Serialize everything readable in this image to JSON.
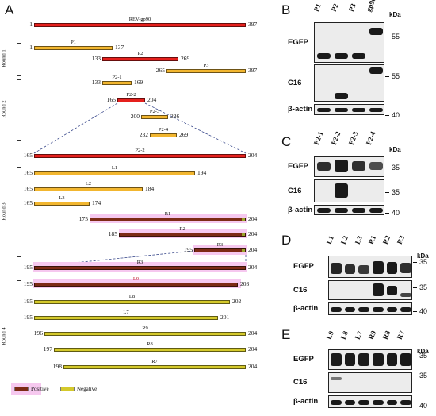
{
  "panel_a": {
    "label": "A",
    "constructs": [
      {
        "id": "rev-gp90",
        "name": "REV-gp90",
        "start": "1",
        "end": "397",
        "color": "red"
      },
      {
        "id": "p1",
        "name": "P1",
        "start": "1",
        "end": "137",
        "color": "orange"
      },
      {
        "id": "p2",
        "name": "P2",
        "start": "133",
        "end": "269",
        "color": "red"
      },
      {
        "id": "p3",
        "name": "P3",
        "start": "265",
        "end": "397",
        "color": "orange"
      },
      {
        "id": "p2-1",
        "name": "P2-1",
        "start": "133",
        "end": "169",
        "color": "orange"
      },
      {
        "id": "p2-2",
        "name": "P2-2",
        "start": "165",
        "end": "204",
        "color": "red"
      },
      {
        "id": "p2-3",
        "name": "P2-3",
        "start": "200",
        "end": "236",
        "color": "orange"
      },
      {
        "id": "p2-4",
        "name": "P2-4",
        "start": "232",
        "end": "269",
        "color": "orange"
      },
      {
        "id": "p2-2-exp",
        "name": "P2-2",
        "start": "165",
        "end": "204",
        "color": "red"
      },
      {
        "id": "l1",
        "name": "L1",
        "start": "165",
        "end": "194",
        "color": "orange"
      },
      {
        "id": "l2",
        "name": "L2",
        "start": "165",
        "end": "184",
        "color": "orange"
      },
      {
        "id": "l3",
        "name": "L3",
        "start": "165",
        "end": "174",
        "color": "orange"
      },
      {
        "id": "r1",
        "name": "R1",
        "start": "175",
        "end": "204",
        "color": "positive"
      },
      {
        "id": "r2",
        "name": "R2",
        "start": "185",
        "end": "204",
        "color": "positive"
      },
      {
        "id": "r3",
        "name": "R3",
        "start": "195",
        "end": "204",
        "color": "positive"
      },
      {
        "id": "r3-exp",
        "name": "R3",
        "start": "195",
        "end": "204",
        "color": "positive"
      },
      {
        "id": "l9",
        "name": "L9",
        "start": "195",
        "end": "203",
        "color": "positive"
      },
      {
        "id": "l8",
        "name": "L8",
        "start": "195",
        "end": "202",
        "color": "negative"
      },
      {
        "id": "l7",
        "name": "L7",
        "start": "195",
        "end": "201",
        "color": "negative"
      },
      {
        "id": "r9",
        "name": "R9",
        "start": "196",
        "end": "204",
        "color": "negative"
      },
      {
        "id": "r8",
        "name": "R8",
        "start": "197",
        "end": "204",
        "color": "negative"
      },
      {
        "id": "r7",
        "name": "R7",
        "start": "198",
        "end": "204",
        "color": "negative"
      }
    ],
    "rounds": [
      "Round 1",
      "Round 2",
      "Round 3",
      "Round 4"
    ],
    "legend": {
      "positive": "Positive",
      "negative": "Negative"
    }
  },
  "panel_b": {
    "label": "B",
    "lanes": [
      "P1",
      "P2",
      "P3",
      "gp90"
    ],
    "rows": [
      "EGFP",
      "C16",
      "β-actin"
    ],
    "kda": "kDa",
    "markers": [
      "55",
      "55",
      "40"
    ]
  },
  "panel_c": {
    "label": "C",
    "lanes": [
      "P2-1",
      "P2-2",
      "P2-3",
      "P2-4"
    ],
    "rows": [
      "EGFP",
      "C16",
      "β-actin"
    ],
    "kda": "kDa",
    "markers": [
      "35",
      "35",
      "40"
    ]
  },
  "panel_d": {
    "label": "D",
    "lanes": [
      "L1",
      "L2",
      "L3",
      "R1",
      "R2",
      "R3"
    ],
    "rows": [
      "EGFP",
      "C16",
      "β-actin"
    ],
    "kda": "kDa",
    "markers": [
      "35",
      "35",
      "40"
    ]
  },
  "panel_e": {
    "label": "E",
    "lanes": [
      "L9",
      "L8",
      "L7",
      "R9",
      "R8",
      "R7"
    ],
    "rows": [
      "EGFP",
      "C16",
      "β-actin"
    ],
    "kda": "kDa",
    "markers": [
      "35",
      "35",
      "40"
    ]
  }
}
